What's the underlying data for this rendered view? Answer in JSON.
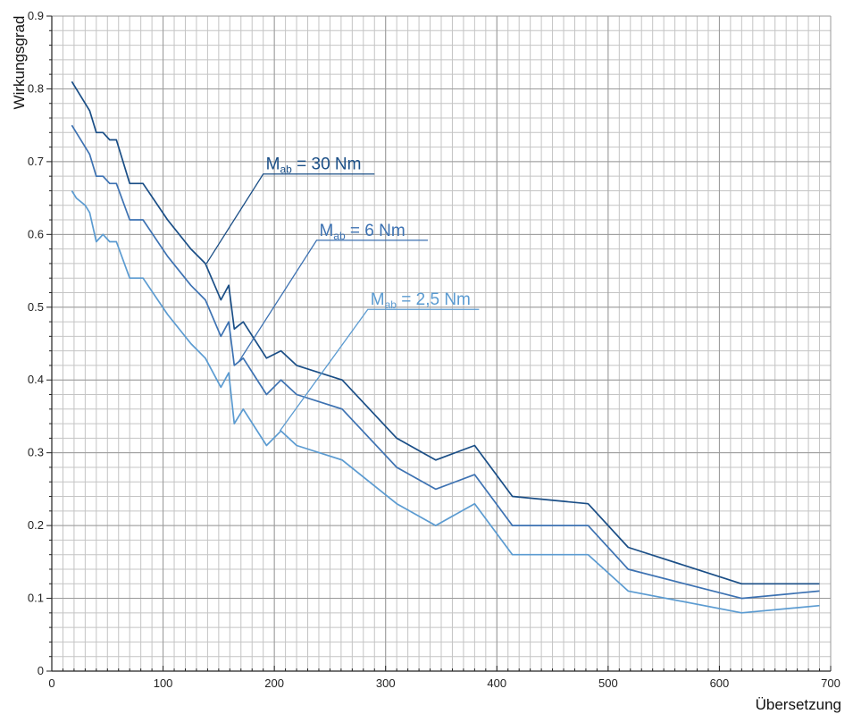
{
  "chart_data": {
    "type": "line",
    "title": "",
    "xlabel": "Übersetzung",
    "ylabel": "Wirkungsgrad",
    "xlim": [
      0,
      700
    ],
    "ylim": [
      0,
      0.9
    ],
    "x_ticks": [
      "0",
      "100",
      "200",
      "300",
      "400",
      "500",
      "600",
      "700"
    ],
    "y_ticks": [
      "0",
      "0.1",
      "0.2",
      "0.3",
      "0.4",
      "0.5",
      "0.6",
      "0.7",
      "0.8",
      "0.9"
    ],
    "grid": true,
    "legend": "none",
    "series": [
      {
        "name": "Mab = 30 Nm",
        "color": "#1a4e86",
        "points": [
          [
            18,
            0.81
          ],
          [
            22,
            0.8
          ],
          [
            34,
            0.77
          ],
          [
            40,
            0.74
          ],
          [
            46,
            0.74
          ],
          [
            52,
            0.73
          ],
          [
            58,
            0.73
          ],
          [
            70,
            0.67
          ],
          [
            82,
            0.67
          ],
          [
            104,
            0.62
          ],
          [
            125,
            0.58
          ],
          [
            138,
            0.56
          ],
          [
            152,
            0.51
          ],
          [
            159,
            0.53
          ],
          [
            164,
            0.47
          ],
          [
            172,
            0.48
          ],
          [
            193,
            0.43
          ],
          [
            206,
            0.44
          ],
          [
            220,
            0.42
          ],
          [
            261,
            0.4
          ],
          [
            310,
            0.32
          ],
          [
            345,
            0.29
          ],
          [
            380,
            0.31
          ],
          [
            414,
            0.24
          ],
          [
            482,
            0.23
          ],
          [
            518,
            0.17
          ],
          [
            620,
            0.12
          ],
          [
            690,
            0.12
          ]
        ]
      },
      {
        "name": "Mab = 6 Nm",
        "color": "#3d72b2",
        "points": [
          [
            18,
            0.75
          ],
          [
            22,
            0.74
          ],
          [
            34,
            0.71
          ],
          [
            40,
            0.68
          ],
          [
            46,
            0.68
          ],
          [
            52,
            0.67
          ],
          [
            58,
            0.67
          ],
          [
            70,
            0.62
          ],
          [
            82,
            0.62
          ],
          [
            104,
            0.57
          ],
          [
            125,
            0.53
          ],
          [
            138,
            0.51
          ],
          [
            152,
            0.46
          ],
          [
            159,
            0.48
          ],
          [
            164,
            0.42
          ],
          [
            172,
            0.43
          ],
          [
            193,
            0.38
          ],
          [
            206,
            0.4
          ],
          [
            220,
            0.38
          ],
          [
            261,
            0.36
          ],
          [
            310,
            0.28
          ],
          [
            345,
            0.25
          ],
          [
            380,
            0.27
          ],
          [
            414,
            0.2
          ],
          [
            482,
            0.2
          ],
          [
            518,
            0.14
          ],
          [
            620,
            0.1
          ],
          [
            690,
            0.11
          ]
        ]
      },
      {
        "name": "Mab = 2,5 Nm",
        "color": "#5b9bd1",
        "points": [
          [
            18,
            0.66
          ],
          [
            22,
            0.65
          ],
          [
            30,
            0.64
          ],
          [
            34,
            0.63
          ],
          [
            40,
            0.59
          ],
          [
            46,
            0.6
          ],
          [
            52,
            0.59
          ],
          [
            58,
            0.59
          ],
          [
            70,
            0.54
          ],
          [
            82,
            0.54
          ],
          [
            104,
            0.49
          ],
          [
            125,
            0.45
          ],
          [
            138,
            0.43
          ],
          [
            152,
            0.39
          ],
          [
            159,
            0.41
          ],
          [
            164,
            0.34
          ],
          [
            172,
            0.36
          ],
          [
            193,
            0.31
          ],
          [
            206,
            0.33
          ],
          [
            220,
            0.31
          ],
          [
            261,
            0.29
          ],
          [
            310,
            0.23
          ],
          [
            345,
            0.2
          ],
          [
            380,
            0.23
          ],
          [
            414,
            0.16
          ],
          [
            482,
            0.16
          ],
          [
            518,
            0.11
          ],
          [
            620,
            0.08
          ],
          [
            690,
            0.09
          ]
        ]
      }
    ],
    "annotations": [
      {
        "main": "M",
        "sub": "ab",
        "rest": " = 30 Nm",
        "color": "#1a4e86",
        "target": [
          139,
          0.56
        ],
        "anchor": [
          190,
          0.683
        ],
        "line_end": [
          290,
          0.683
        ]
      },
      {
        "main": "M",
        "sub": "ab",
        "rest": " = 6 Nm",
        "color": "#3d72b2",
        "target": [
          168,
          0.425
        ],
        "anchor": [
          238,
          0.592
        ],
        "line_end": [
          338,
          0.592
        ]
      },
      {
        "main": "M",
        "sub": "ab",
        "rest": " = 2,5 Nm",
        "color": "#5b9bd1",
        "target": [
          205,
          0.33
        ],
        "anchor": [
          284,
          0.497
        ],
        "line_end": [
          384,
          0.497
        ]
      }
    ]
  }
}
